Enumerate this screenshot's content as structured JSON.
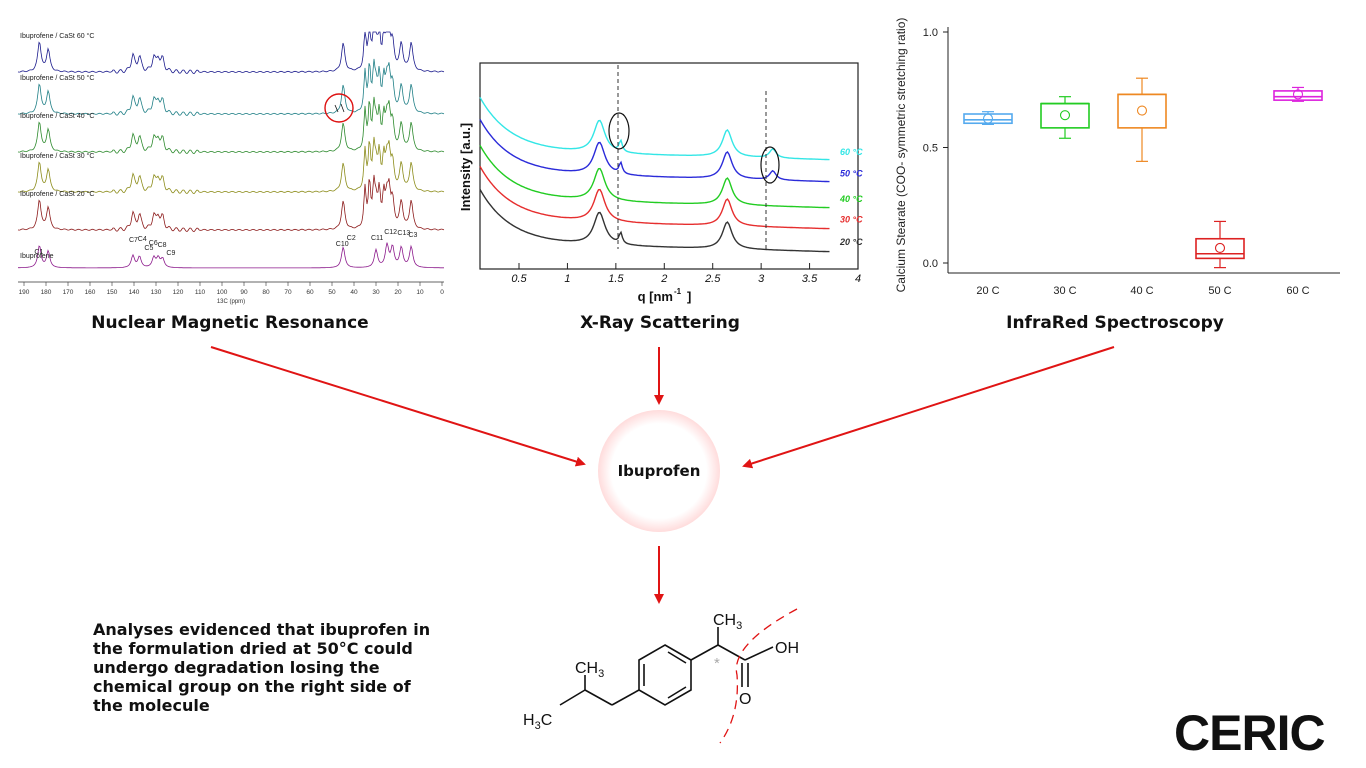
{
  "captions": {
    "nmr": "Nuclear Magnetic Resonance",
    "xray": "X-Ray Scattering",
    "ir": "InfraRed Spectroscopy"
  },
  "center_node": "Ibuprofen",
  "conclusion": "Analyses evidenced that ibuprofen in the formulation dried at 50°C could undergo degradation losing the chemical group on the right side of the molecule",
  "logo": "CERIC",
  "nmr": {
    "traces": [
      {
        "label": "Ibuprofene / CaSt 60 °C",
        "color": "#1a1a8c"
      },
      {
        "label": "Ibuprofene / CaSt 50 °C",
        "color": "#1f7f86"
      },
      {
        "label": "Ibuprofene / CaSt 40 °C",
        "color": "#2d8a2d"
      },
      {
        "label": "Ibuprofene / CaSt 30 °C",
        "color": "#8c8c1a"
      },
      {
        "label": "Ibuprofene / CaSt 20 °C",
        "color": "#8c1a1a"
      },
      {
        "label": "Ibuprofene",
        "color": "#8c1a8c"
      }
    ],
    "peak_labels": [
      "C1",
      "C7",
      "C4",
      "C6",
      "C5",
      "C8",
      "C9",
      "C10",
      "C2",
      "C11",
      "C12",
      "C13",
      "C3"
    ],
    "x_ticks": [
      "190",
      "180",
      "170",
      "160",
      "150",
      "140",
      "130",
      "120",
      "110",
      "100",
      "90",
      "80",
      "70",
      "60",
      "50",
      "40",
      "30",
      "20",
      "10",
      "0"
    ],
    "x_label": "13C (ppm)"
  },
  "xray": {
    "y_label": "Intensity [a.u.]",
    "x_label": "q [nm",
    "x_label_exp": "-1",
    "x_label_close": "]",
    "x_ticks": [
      "0.5",
      "1",
      "1.5",
      "2",
      "2.5",
      "3",
      "3.5",
      "4"
    ],
    "series": [
      {
        "name": "60 °C",
        "color": "#33e6e6"
      },
      {
        "name": "50 °C",
        "color": "#2b2bd9"
      },
      {
        "name": "40 °C",
        "color": "#22cc22"
      },
      {
        "name": "30 °C",
        "color": "#e62e2e"
      },
      {
        "name": "20 °C",
        "color": "#333333"
      }
    ]
  },
  "chart_data": {
    "type": "box",
    "ylabel": "Calcium Stearate (COO- symmetric stretching ratio)",
    "ylim": [
      0,
      1.0
    ],
    "y_ticks": [
      "1.0",
      "0.5",
      "0.0"
    ],
    "categories": [
      "20 C",
      "30 C",
      "40 C",
      "50 C",
      "60 C"
    ],
    "colors": [
      "#55aaee",
      "#22cc22",
      "#ee8822",
      "#dd2222",
      "#dd22dd"
    ],
    "boxes": [
      {
        "min": 0.6,
        "q1": 0.605,
        "median": 0.62,
        "q3": 0.645,
        "max": 0.655,
        "mean": 0.625
      },
      {
        "min": 0.54,
        "q1": 0.585,
        "median": 0.69,
        "q3": 0.69,
        "max": 0.72,
        "mean": 0.64
      },
      {
        "min": 0.44,
        "q1": 0.585,
        "median": 0.73,
        "q3": 0.73,
        "max": 0.8,
        "mean": 0.66
      },
      {
        "min": -0.02,
        "q1": 0.02,
        "median": 0.04,
        "q3": 0.105,
        "max": 0.18,
        "mean": 0.065
      },
      {
        "min": 0.7,
        "q1": 0.705,
        "median": 0.72,
        "q3": 0.745,
        "max": 0.76,
        "mean": 0.73
      }
    ]
  },
  "molecule": {
    "ch3_top": "CH",
    "ch3_top_sub": "3",
    "ch3_left": "CH",
    "ch3_left_sub": "3",
    "h3c": "H",
    "h3c_sub": "3",
    "h3c_tail": "C",
    "oh": "OH",
    "o": "O",
    "star": "*"
  }
}
